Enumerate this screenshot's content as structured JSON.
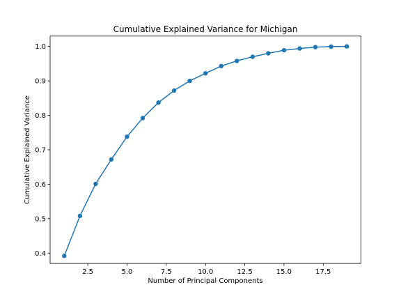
{
  "chart_data": {
    "type": "line",
    "title": "Cumulative Explained Variance for Michigan",
    "xlabel": "Number of Principal Components",
    "ylabel": "Cumulative Explained Variance",
    "xlim": [
      0.1,
      19.9
    ],
    "ylim": [
      0.37,
      1.03
    ],
    "xticks": [
      2.5,
      5.0,
      7.5,
      10.0,
      12.5,
      15.0,
      17.5
    ],
    "xtick_labels": [
      "2.5",
      "5.0",
      "7.5",
      "10.0",
      "12.5",
      "15.0",
      "17.5"
    ],
    "yticks": [
      0.4,
      0.5,
      0.6,
      0.7,
      0.8,
      0.9,
      1.0
    ],
    "ytick_labels": [
      "0.4",
      "0.5",
      "0.6",
      "0.7",
      "0.8",
      "0.9",
      "1.0"
    ],
    "grid": false,
    "marker": "circle",
    "color": "#1f77b4",
    "x": [
      1,
      2,
      3,
      4,
      5,
      6,
      7,
      8,
      9,
      10,
      11,
      12,
      13,
      14,
      15,
      16,
      17,
      18,
      19
    ],
    "y": [
      0.392,
      0.508,
      0.601,
      0.672,
      0.738,
      0.792,
      0.837,
      0.872,
      0.9,
      0.922,
      0.943,
      0.958,
      0.97,
      0.98,
      0.989,
      0.994,
      0.998,
      0.9995,
      1.0
    ]
  }
}
